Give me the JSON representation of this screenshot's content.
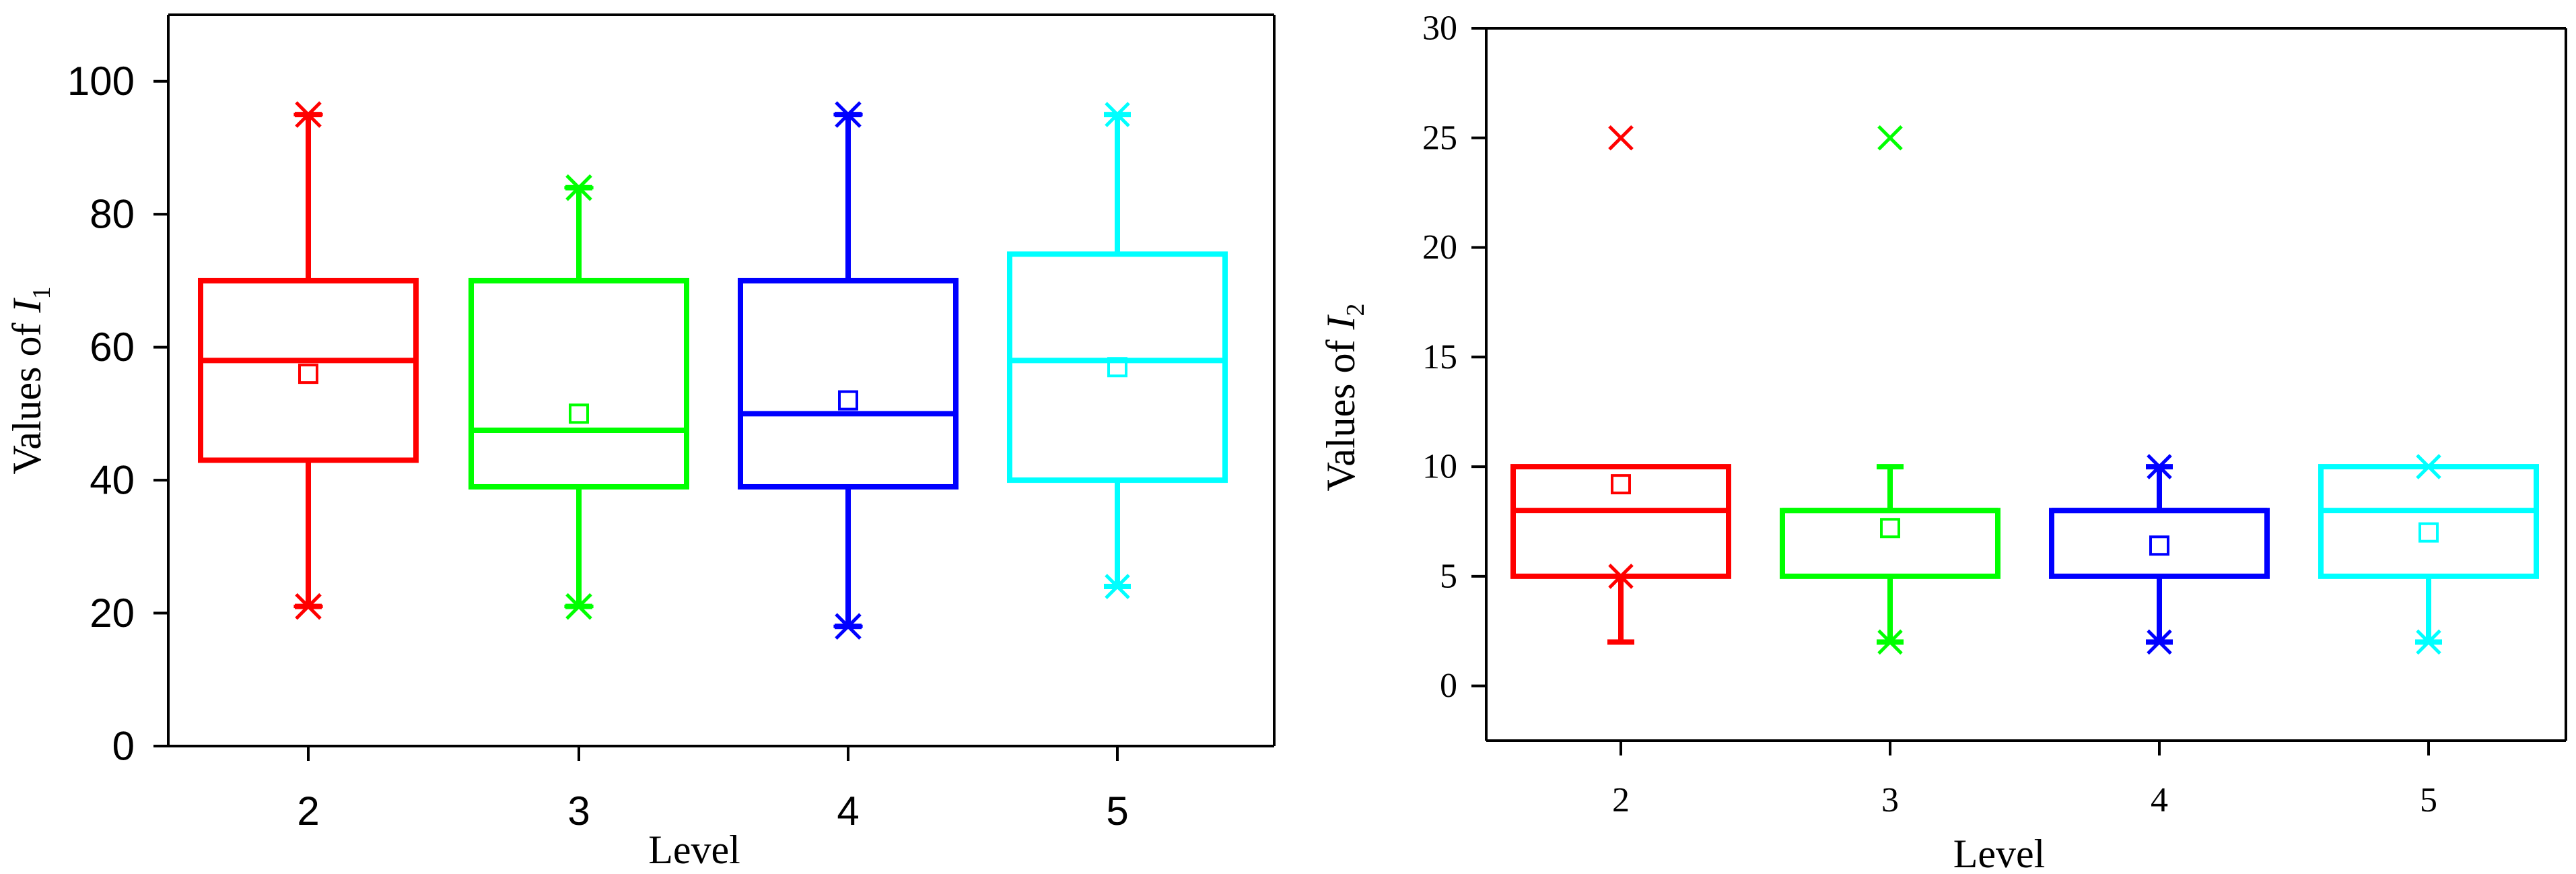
{
  "chart_data": [
    {
      "type": "box",
      "xlabel": "Level",
      "ylabel_text": "Values of ",
      "ylabel_var": "I",
      "ylabel_sub": "1",
      "categories": [
        "2",
        "3",
        "4",
        "5"
      ],
      "ylim": [
        0,
        110
      ],
      "yticks": [
        0,
        20,
        40,
        60,
        80,
        100
      ],
      "ytick_labels": [
        "0",
        "20",
        "40",
        "60",
        "80",
        "100"
      ],
      "grid": false,
      "series": [
        {
          "category": "2",
          "color": "#ff0000",
          "q1": 43,
          "median": 58,
          "q3": 70,
          "mean": 56,
          "whisker_low": 21,
          "whisker_high": 95,
          "low_marker": "star",
          "high_marker": "star",
          "outliers": []
        },
        {
          "category": "3",
          "color": "#00ff00",
          "q1": 39,
          "median": 47.5,
          "q3": 70,
          "mean": 50,
          "whisker_low": 21,
          "whisker_high": 84,
          "low_marker": "star",
          "high_marker": "star",
          "outliers": []
        },
        {
          "category": "4",
          "color": "#0000ff",
          "q1": 39,
          "median": 50,
          "q3": 70,
          "mean": 52,
          "whisker_low": 18,
          "whisker_high": 95,
          "low_marker": "star",
          "high_marker": "star",
          "outliers": []
        },
        {
          "category": "5",
          "color": "#00ffff",
          "q1": 40,
          "median": 58,
          "q3": 74,
          "mean": 57,
          "whisker_low": 24,
          "whisker_high": 95,
          "low_marker": "x",
          "high_marker": "x",
          "outliers": []
        }
      ]
    },
    {
      "type": "box",
      "xlabel": "Level",
      "ylabel_text": "Values of ",
      "ylabel_var": "I",
      "ylabel_sub": "2",
      "categories": [
        "2",
        "3",
        "4",
        "5"
      ],
      "ylim": [
        -2.5,
        30
      ],
      "yticks": [
        0,
        5,
        10,
        15,
        20,
        25,
        30
      ],
      "ytick_labels": [
        "0",
        "5",
        "10",
        "15",
        "20",
        "25",
        "30"
      ],
      "grid": false,
      "series": [
        {
          "category": "2",
          "color": "#ff0000",
          "q1": 5,
          "median": 8,
          "q3": 10,
          "mean": 9.2,
          "whisker_low": 2,
          "whisker_high": 10,
          "low_marker": "none",
          "high_marker": "none",
          "inner_marker": 5,
          "outliers": [
            25
          ]
        },
        {
          "category": "3",
          "color": "#00ff00",
          "q1": 5,
          "median": 8,
          "q3": 8,
          "mean": 7.2,
          "whisker_low": 2,
          "whisker_high": 10,
          "low_marker": "x",
          "high_marker": "none",
          "outliers": [
            25
          ]
        },
        {
          "category": "4",
          "color": "#0000ff",
          "q1": 5,
          "median": 8,
          "q3": 8,
          "mean": 6.4,
          "whisker_low": 2,
          "whisker_high": 10,
          "low_marker": "x",
          "high_marker": "x",
          "outliers": []
        },
        {
          "category": "5",
          "color": "#00ffff",
          "q1": 5,
          "median": 8,
          "q3": 10,
          "mean": 7.0,
          "whisker_low": 2,
          "whisker_high": 10,
          "low_marker": "x",
          "high_marker": "x",
          "outliers": []
        }
      ]
    }
  ]
}
